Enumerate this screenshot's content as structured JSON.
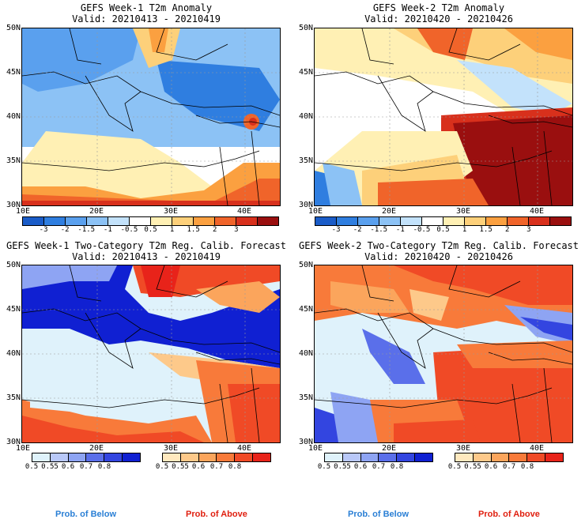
{
  "panels": [
    {
      "title": "GEFS Week-1 T2m Anomaly",
      "valid": "Valid: 20210413 - 20210419"
    },
    {
      "title": "GEFS Week-2 T2m Anomaly",
      "valid": "Valid: 20210420 - 20210426"
    },
    {
      "title": "GEFS Week-1 Two-Category T2m Reg. Calib. Forecast",
      "valid": "Valid: 20210413 - 20210419"
    },
    {
      "title": "GEFS Week-2 Two-Category T2m Reg. Calib. Forecast",
      "valid": "Valid: 20210420 - 20210426"
    }
  ],
  "lat_labels": [
    "50N",
    "45N",
    "40N",
    "35N",
    "30N"
  ],
  "lon_labels": [
    "10E",
    "20E",
    "30E",
    "40E"
  ],
  "anomaly_scale": {
    "ticks": [
      "-3",
      "-2",
      "-1.5",
      "-1",
      "-0.5",
      "0.5",
      "1",
      "1.5",
      "2",
      "3"
    ],
    "colors": [
      "#1a5cc8",
      "#2f7ee0",
      "#5aa0ee",
      "#8cc2f5",
      "#c3e2fb",
      "#ffffff",
      "#fff0b4",
      "#fdd07a",
      "#fba040",
      "#f0642a",
      "#d8301c",
      "#9a0f0f"
    ]
  },
  "prob_below_scale": {
    "ticks": [
      "0.5",
      "0.55",
      "0.6",
      "0.7",
      "0.8"
    ],
    "colors": [
      "#dff2fb",
      "#b9c8f8",
      "#8ea4f3",
      "#5a6fea",
      "#3345e0",
      "#1020d2"
    ]
  },
  "prob_above_scale": {
    "ticks": [
      "0.5",
      "0.55",
      "0.6",
      "0.7",
      "0.8"
    ],
    "colors": [
      "#ffe9bf",
      "#fdc98a",
      "#fba55c",
      "#f87a3a",
      "#f04a26",
      "#e8231a"
    ]
  },
  "footer": {
    "below": "Prob. of Below",
    "above": "Prob. of Above",
    "below_color": "#2a7fd5",
    "above_color": "#e02010"
  }
}
